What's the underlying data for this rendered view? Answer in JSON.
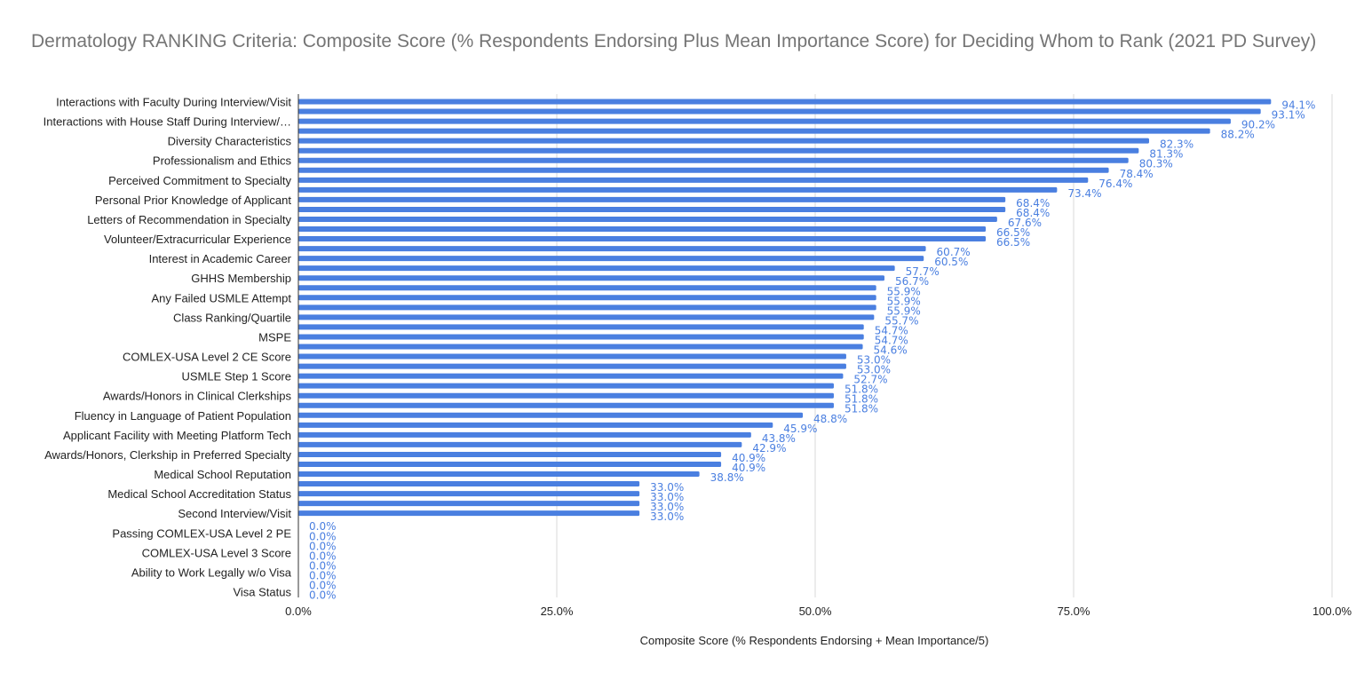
{
  "chart_data": {
    "type": "bar",
    "orientation": "horizontal",
    "title": "Dermatology RANKING Criteria: Composite Score (% Respondents Endorsing Plus Mean Importance Score) for Deciding Whom to Rank (2021 PD Survey)",
    "xlabel": "Composite Score (% Respondents Endorsing + Mean Importance/5)",
    "ylabel": "",
    "xlim": [
      0,
      100
    ],
    "x_ticks": [
      "0.0%",
      "25.0%",
      "50.0%",
      "75.0%",
      "100.0%"
    ],
    "grid": "vertical",
    "bar_color": "#4a7fe0",
    "categories": [
      "Interactions with Faculty During Interview/Visit",
      "",
      "Interactions with House Staff During Interview/…",
      "",
      "Diversity Characteristics",
      "",
      "Professionalism and Ethics",
      "",
      "Perceived Commitment to Specialty",
      "",
      "Personal Prior Knowledge of Applicant",
      "",
      "Letters of Recommendation in Specialty",
      "",
      "Volunteer/Extracurricular Experience",
      "",
      "Interest in Academic Career",
      "",
      "GHHS Membership",
      "",
      "Any Failed USMLE Attempt",
      "",
      "Class Ranking/Quartile",
      "",
      "MSPE",
      "",
      "COMLEX-USA Level 2 CE Score",
      "",
      "USMLE Step 1 Score",
      "",
      "Awards/Honors in Clinical Clerkships",
      "",
      "Fluency in Language of Patient Population",
      "",
      "Applicant Facility with Meeting Platform Tech",
      "",
      "Awards/Honors, Clerkship in Preferred Specialty",
      "",
      "Medical School Reputation",
      "",
      "Medical School Accreditation Status",
      "",
      "Second Interview/Visit",
      "",
      "Passing COMLEX-USA Level 2 PE",
      "",
      "COMLEX-USA Level 3 Score",
      "",
      "Ability to Work Legally w/o Visa",
      "",
      "Visa Status"
    ],
    "values": [
      94.1,
      93.1,
      90.2,
      88.2,
      82.3,
      81.3,
      80.3,
      78.4,
      76.4,
      73.4,
      68.4,
      68.4,
      67.6,
      66.5,
      66.5,
      60.7,
      60.5,
      57.7,
      56.7,
      55.9,
      55.9,
      55.9,
      55.7,
      54.7,
      54.7,
      54.6,
      53.0,
      53.0,
      52.7,
      51.8,
      51.8,
      51.8,
      48.8,
      45.9,
      43.8,
      42.9,
      40.9,
      40.9,
      38.8,
      33.0,
      33.0,
      33.0,
      33.0,
      0.0,
      0.0,
      0.0,
      0.0,
      0.0,
      0.0,
      0.0,
      0.0
    ],
    "data_labels": [
      "94.1%",
      "93.1%",
      "90.2%",
      "88.2%",
      "82.3%",
      "81.3%",
      "80.3%",
      "78.4%",
      "76.4%",
      "73.4%",
      "68.4%",
      "68.4%",
      "67.6%",
      "66.5%",
      "66.5%",
      "60.7%",
      "60.5%",
      "57.7%",
      "56.7%",
      "55.9%",
      "55.9%",
      "55.9%",
      "55.7%",
      "54.7%",
      "54.7%",
      "54.6%",
      "53.0%",
      "53.0%",
      "52.7%",
      "51.8%",
      "51.8%",
      "51.8%",
      "48.8%",
      "45.9%",
      "43.8%",
      "42.9%",
      "40.9%",
      "40.9%",
      "38.8%",
      "33.0%",
      "33.0%",
      "33.0%",
      "33.0%",
      "0.0%",
      "0.0%",
      "0.0%",
      "0.0%",
      "0.0%",
      "0.0%",
      "0.0%",
      "0.0%"
    ]
  }
}
